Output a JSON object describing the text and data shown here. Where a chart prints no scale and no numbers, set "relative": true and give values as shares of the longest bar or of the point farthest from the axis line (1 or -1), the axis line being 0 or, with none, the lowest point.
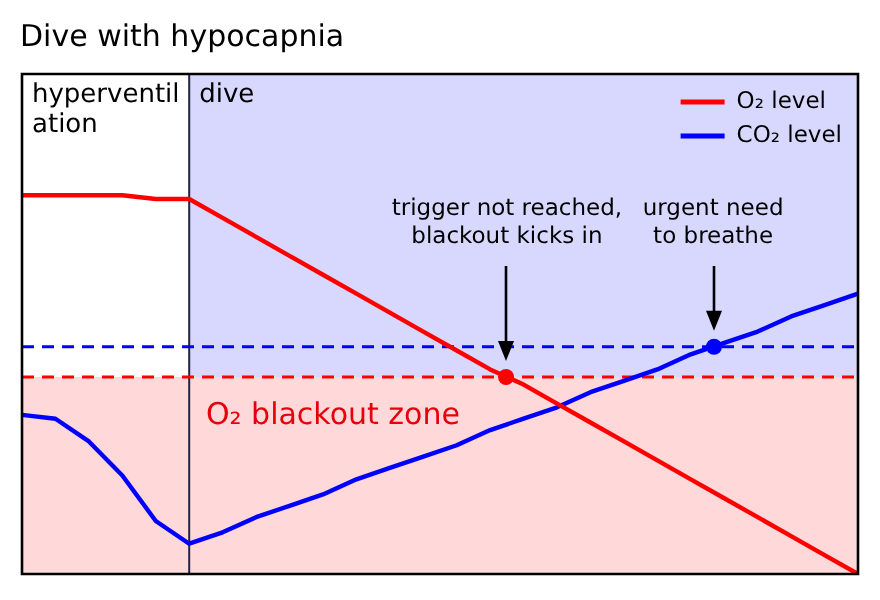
{
  "chart_data": {
    "type": "line",
    "title": "Dive with hypocapnia",
    "relative": true,
    "legend": "top right",
    "marker": "none",
    "line_style": "solid",
    "categories": [
      null,
      null,
      null,
      null,
      null,
      null,
      null,
      null,
      null,
      null,
      null,
      null,
      null,
      null,
      null,
      null,
      null,
      null,
      null,
      null,
      null,
      null,
      null,
      null,
      null,
      null
    ],
    "series": [
      {
        "name": "O₂ level",
        "color": "#ff0000",
        "values": [
          1,
          1,
          1,
          1,
          0.99,
          0.99,
          0.94,
          0.89,
          0.84,
          0.79,
          0.74,
          0.69,
          0.64,
          0.59,
          0.54,
          0.5,
          0.45,
          0.4,
          0.35,
          0.3,
          0.25,
          0.2,
          0.15,
          0.1,
          0.05,
          0
        ]
      },
      {
        "name": "CO₂ level",
        "color": "#0000ff",
        "values": [
          0.42,
          0.41,
          0.35,
          0.26,
          0.14,
          0.08,
          0.11,
          0.15,
          0.18,
          0.21,
          0.25,
          0.28,
          0.31,
          0.34,
          0.38,
          0.41,
          0.44,
          0.48,
          0.51,
          0.54,
          0.58,
          0.61,
          0.64,
          0.68,
          0.71,
          0.74
        ]
      }
    ],
    "bands": [
      {
        "axis": "y",
        "from": 0,
        "to": 0.52,
        "label": "O₂ blackout zone",
        "color": "#ffd8da"
      }
    ],
    "ref_lines": [
      {
        "axis": "y",
        "value": 0.52,
        "color": "#ff0000",
        "line_style": "dashed"
      },
      {
        "axis": "y",
        "value": 0.6,
        "color": "#0000ff",
        "line_style": "dashed"
      }
    ],
    "annotations": [
      "hyperventilation",
      "dive",
      "trigger not reached, blackout kicks in",
      "urgent need to breathe"
    ]
  }
}
